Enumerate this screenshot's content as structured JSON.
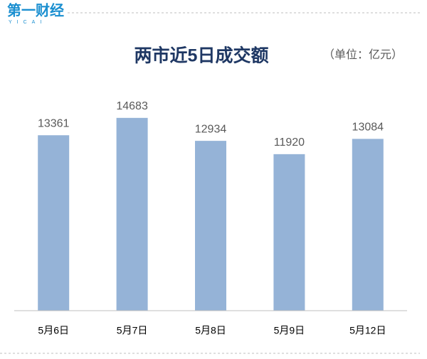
{
  "logo": {
    "name": "第一财经",
    "subtitle": "YICAI"
  },
  "chart_data": {
    "type": "bar",
    "title": "两市近5日成交额",
    "unit": "（单位：亿元）",
    "categories": [
      "5月6日",
      "5月7日",
      "5月8日",
      "5月9日",
      "5月12日"
    ],
    "values": [
      13361,
      14683,
      12934,
      11920,
      13084
    ],
    "color": "#95b3d7",
    "ylim": [
      0,
      16000
    ]
  }
}
